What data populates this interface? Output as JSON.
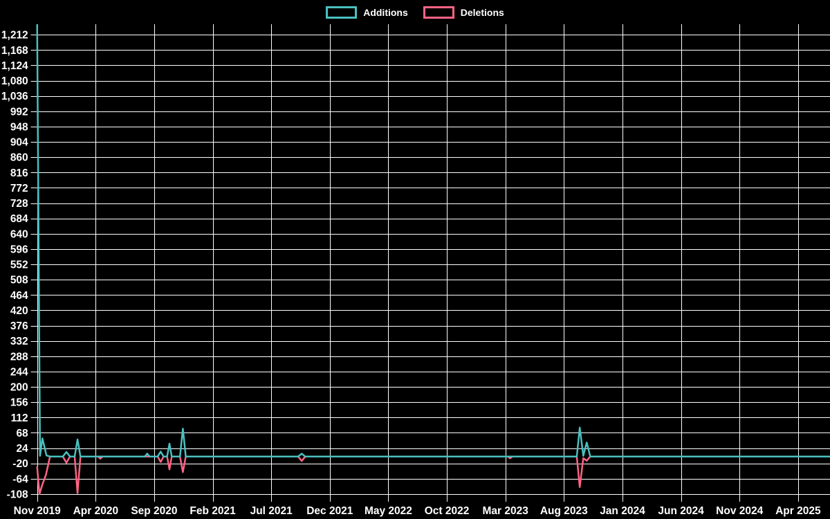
{
  "page": {
    "background": "#000000",
    "text_color": "#ffffff"
  },
  "legend": {
    "position": "top-center",
    "items": [
      {
        "label": "Additions",
        "color": "#4bc0c0",
        "swatch": "outlined-box"
      },
      {
        "label": "Deletions",
        "color": "#ff6384",
        "swatch": "outlined-box"
      }
    ]
  },
  "chart_data": {
    "type": "line",
    "title": "",
    "xlabel": "",
    "ylabel": "",
    "grid": {
      "show": true,
      "color": "#ffffff"
    },
    "background": "#000000",
    "legend_position": "top",
    "x_axis": {
      "unit": "month",
      "tick_labels": [
        "Nov 2019",
        "Apr 2020",
        "Sep 2020",
        "Feb 2021",
        "Jul 2021",
        "Dec 2021",
        "May 2022",
        "Oct 2022",
        "Mar 2023",
        "Aug 2023",
        "Jan 2024",
        "Jun 2024",
        "Nov 2024",
        "Apr 2025"
      ],
      "tick_month_offsets": [
        0,
        5,
        10,
        15,
        20,
        25,
        30,
        35,
        40,
        45,
        50,
        55,
        60,
        65
      ],
      "axis_span_months": [
        0,
        67.7
      ]
    },
    "y_axis": {
      "tick_labels": [
        "1,212",
        "1,168",
        "1,124",
        "1,080",
        "1,036",
        "992",
        "948",
        "904",
        "860",
        "816",
        "772",
        "728",
        "684",
        "640",
        "596",
        "552",
        "508",
        "464",
        "420",
        "376",
        "332",
        "288",
        "244",
        "200",
        "156",
        "112",
        "68",
        "24",
        "-20",
        "-64",
        "-108"
      ],
      "tick_values": [
        1212,
        1168,
        1124,
        1080,
        1036,
        992,
        948,
        904,
        860,
        816,
        772,
        728,
        684,
        640,
        596,
        552,
        508,
        464,
        420,
        376,
        332,
        288,
        244,
        200,
        156,
        112,
        68,
        24,
        -20,
        -64,
        -108
      ],
      "step": 44,
      "axis_min": -130,
      "axis_max": 1242
    },
    "series": [
      {
        "name": "Additions",
        "color": "#4bc0c0",
        "points": [
          [
            0,
            1240
          ],
          [
            0.25,
            2
          ],
          [
            0.45,
            52
          ],
          [
            0.8,
            3
          ],
          [
            1.1,
            0
          ],
          [
            2.2,
            0
          ],
          [
            2.5,
            13
          ],
          [
            2.8,
            0
          ],
          [
            3.2,
            0
          ],
          [
            3.45,
            49
          ],
          [
            3.7,
            0
          ],
          [
            9.2,
            0
          ],
          [
            9.4,
            8
          ],
          [
            9.6,
            0
          ],
          [
            10.3,
            0
          ],
          [
            10.55,
            14
          ],
          [
            10.8,
            0
          ],
          [
            11.1,
            0
          ],
          [
            11.3,
            37
          ],
          [
            11.5,
            0
          ],
          [
            12.2,
            0
          ],
          [
            12.45,
            80
          ],
          [
            12.7,
            0
          ],
          [
            22.3,
            0
          ],
          [
            22.6,
            8
          ],
          [
            22.9,
            0
          ],
          [
            46.1,
            0
          ],
          [
            46.35,
            83
          ],
          [
            46.65,
            2
          ],
          [
            46.95,
            40
          ],
          [
            47.25,
            0
          ],
          [
            67.7,
            0
          ]
        ]
      },
      {
        "name": "Deletions",
        "color": "#ff6384",
        "points": [
          [
            0,
            -30
          ],
          [
            0.2,
            -108
          ],
          [
            0.45,
            -80
          ],
          [
            0.75,
            -53
          ],
          [
            1.1,
            0
          ],
          [
            2.2,
            0
          ],
          [
            2.5,
            -18
          ],
          [
            2.8,
            0
          ],
          [
            3.2,
            0
          ],
          [
            3.45,
            -105
          ],
          [
            3.7,
            0
          ],
          [
            5.2,
            0
          ],
          [
            5.4,
            -6
          ],
          [
            5.6,
            0
          ],
          [
            10.3,
            0
          ],
          [
            10.55,
            -16
          ],
          [
            10.8,
            0
          ],
          [
            11.1,
            0
          ],
          [
            11.3,
            -37
          ],
          [
            11.5,
            0
          ],
          [
            12.2,
            0
          ],
          [
            12.45,
            -45
          ],
          [
            12.7,
            0
          ],
          [
            22.3,
            0
          ],
          [
            22.6,
            -13
          ],
          [
            22.9,
            0
          ],
          [
            40.2,
            0
          ],
          [
            40.4,
            -5
          ],
          [
            40.6,
            0
          ],
          [
            46.1,
            0
          ],
          [
            46.35,
            -88
          ],
          [
            46.65,
            -5
          ],
          [
            46.95,
            -12
          ],
          [
            47.25,
            0
          ],
          [
            67.7,
            0
          ]
        ]
      }
    ]
  }
}
